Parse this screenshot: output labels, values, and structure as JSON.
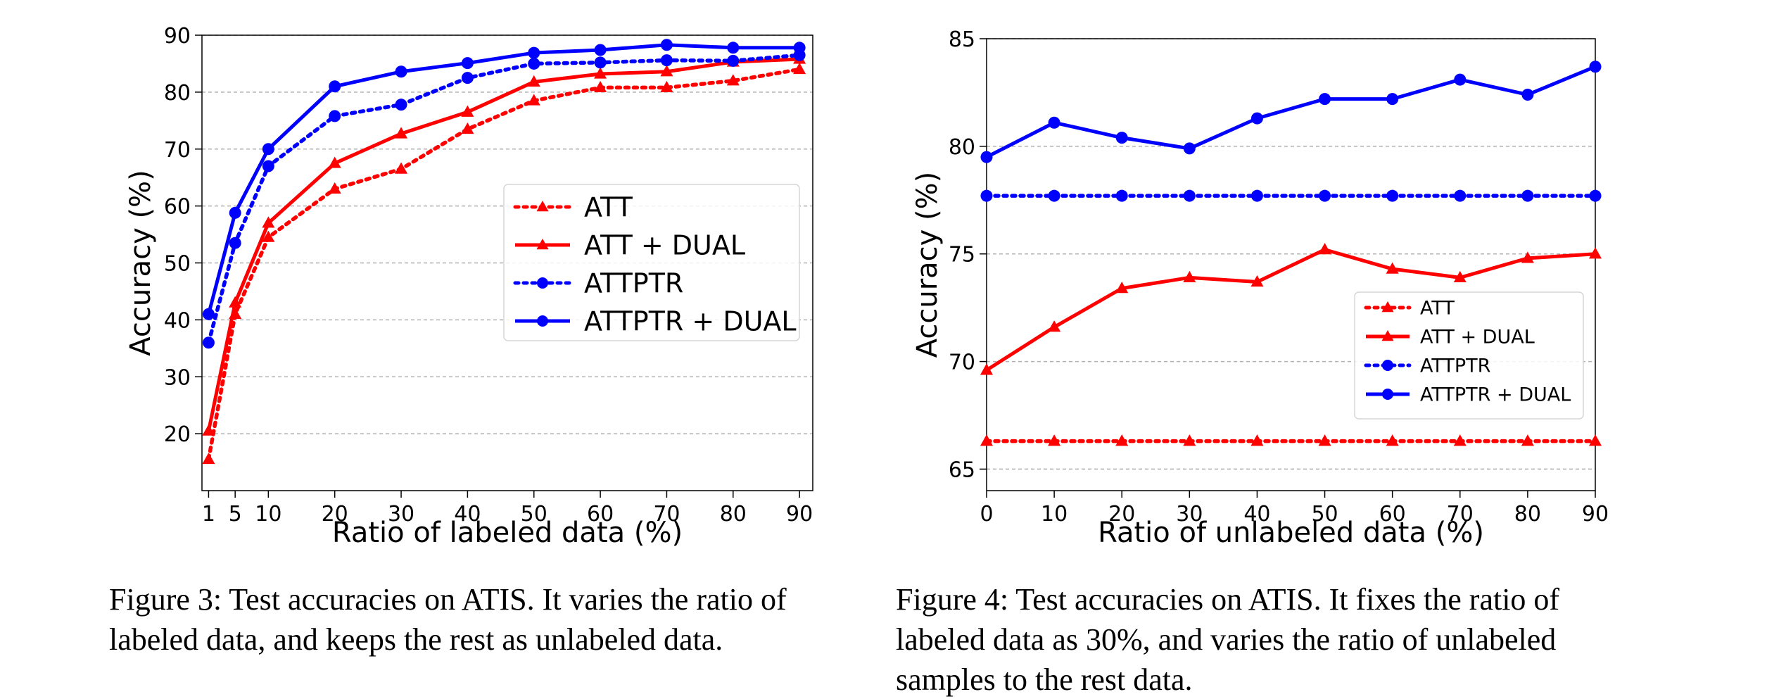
{
  "chart_data": [
    {
      "type": "line",
      "xlabel": "Ratio of labeled data (%)",
      "ylabel": "Accuracy (%)",
      "x": [
        1,
        5,
        10,
        20,
        30,
        40,
        50,
        60,
        70,
        80,
        90
      ],
      "xlim": [
        0,
        92
      ],
      "ylim": [
        10,
        90
      ],
      "xticks": [
        "1",
        "5",
        "10",
        "20",
        "30",
        "40",
        "50",
        "60",
        "70",
        "80",
        "90"
      ],
      "yticks": [
        "20",
        "30",
        "40",
        "50",
        "60",
        "70",
        "80",
        "90"
      ],
      "grid": "horizontal",
      "legend_position": "center-right",
      "series": [
        {
          "name": "ATT",
          "color": "#ff0000",
          "style": "dotted",
          "marker": "triangle",
          "values": [
            15.5,
            41,
            54.5,
            63,
            66.5,
            73.5,
            78.5,
            80.8,
            80.8,
            82,
            84
          ]
        },
        {
          "name": "ATT + DUAL",
          "color": "#ff0000",
          "style": "solid",
          "marker": "triangle",
          "values": [
            20.5,
            43,
            57,
            67.5,
            72.7,
            76.5,
            81.8,
            83.2,
            83.6,
            85.3,
            85.8
          ]
        },
        {
          "name": "ATTPTR",
          "color": "#0000ff",
          "style": "dotted",
          "marker": "circle",
          "values": [
            36,
            53.5,
            67,
            75.8,
            77.8,
            82.5,
            85,
            85.2,
            85.6,
            85.5,
            86.5
          ]
        },
        {
          "name": "ATTPTR + DUAL",
          "color": "#0000ff",
          "style": "solid",
          "marker": "circle",
          "values": [
            41,
            58.8,
            70,
            81,
            83.6,
            85.1,
            86.9,
            87.4,
            88.3,
            87.8,
            87.8
          ]
        }
      ],
      "caption_lines": [
        "Figure 3: Test accuracies on ATIS. It varies the ratio of",
        "labeled data, and keeps the rest as unlabeled data."
      ]
    },
    {
      "type": "line",
      "xlabel": "Ratio of unlabeled data (%)",
      "ylabel": "Accuracy (%)",
      "x": [
        0,
        10,
        20,
        30,
        40,
        50,
        60,
        70,
        80,
        90
      ],
      "xlim": [
        0,
        90
      ],
      "ylim": [
        64,
        85
      ],
      "xticks": [
        "0",
        "10",
        "20",
        "30",
        "40",
        "50",
        "60",
        "70",
        "80",
        "90"
      ],
      "yticks": [
        "65",
        "70",
        "75",
        "80",
        "85"
      ],
      "grid": "horizontal",
      "legend_position": "lower-right",
      "series": [
        {
          "name": "ATT",
          "color": "#ff0000",
          "style": "dotted",
          "marker": "triangle",
          "values": [
            66.3,
            66.3,
            66.3,
            66.3,
            66.3,
            66.3,
            66.3,
            66.3,
            66.3,
            66.3
          ]
        },
        {
          "name": "ATT + DUAL",
          "color": "#ff0000",
          "style": "solid",
          "marker": "triangle",
          "values": [
            69.6,
            71.6,
            73.4,
            73.9,
            73.7,
            75.2,
            74.3,
            73.9,
            74.8,
            75
          ]
        },
        {
          "name": "ATTPTR",
          "color": "#0000ff",
          "style": "dotted",
          "marker": "circle",
          "values": [
            77.7,
            77.7,
            77.7,
            77.7,
            77.7,
            77.7,
            77.7,
            77.7,
            77.7,
            77.7
          ]
        },
        {
          "name": "ATTPTR + DUAL",
          "color": "#0000ff",
          "style": "solid",
          "marker": "circle",
          "values": [
            79.5,
            81.1,
            80.4,
            79.9,
            81.3,
            82.2,
            82.2,
            83.1,
            82.4,
            83.7
          ]
        }
      ],
      "caption_lines": [
        "Figure 4: Test accuracies on ATIS. It fixes the ratio of",
        "labeled data as 30%, and varies the ratio of unlabeled",
        "samples to the rest data."
      ]
    }
  ]
}
